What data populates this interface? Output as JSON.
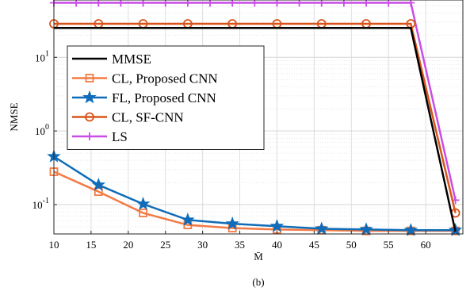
{
  "caption": "(b)",
  "chart_data": {
    "type": "line",
    "xlabel": "M̄",
    "ylabel": "NMSE",
    "xlim": [
      10,
      65
    ],
    "ylim": [
      0.04,
      60
    ],
    "yscale": "log",
    "grid": true,
    "legend_position": "top-left",
    "x_ticks": [
      10,
      15,
      20,
      25,
      30,
      35,
      40,
      45,
      50,
      55,
      60
    ],
    "y_ticks": [
      {
        "value": 0.1,
        "base": "10",
        "exp": "-1"
      },
      {
        "value": 1,
        "base": "10",
        "exp": "0"
      },
      {
        "value": 10,
        "base": "10",
        "exp": "1"
      }
    ],
    "series": [
      {
        "name": "MMSE",
        "color": "#000000",
        "marker": "none",
        "x": [
          10,
          16,
          22,
          28,
          34,
          40,
          46,
          52,
          58,
          64
        ],
        "y": [
          25,
          25,
          25,
          25,
          25,
          25,
          25,
          25,
          25,
          0.043
        ]
      },
      {
        "name": "CL, Proposed CNN",
        "color": "#F47A43",
        "marker": "square",
        "x": [
          10,
          16,
          22,
          28,
          34,
          40,
          46,
          52,
          58,
          64
        ],
        "y": [
          0.28,
          0.15,
          0.077,
          0.053,
          0.048,
          0.046,
          0.045,
          0.044,
          0.044,
          0.044
        ]
      },
      {
        "name": "FL, Proposed CNN",
        "color": "#0F6CB8",
        "marker": "star",
        "x": [
          10,
          16,
          22,
          28,
          34,
          40,
          46,
          52,
          58,
          64
        ],
        "y": [
          0.45,
          0.185,
          0.102,
          0.062,
          0.055,
          0.051,
          0.047,
          0.046,
          0.045,
          0.045
        ]
      },
      {
        "name": "CL, SF-CNN",
        "color": "#D9541A",
        "marker": "circle",
        "x": [
          10,
          16,
          22,
          28,
          34,
          40,
          46,
          52,
          58,
          64
        ],
        "y": [
          28.5,
          28.5,
          28.5,
          28.5,
          28.5,
          28.5,
          28.5,
          28.5,
          28.5,
          0.077
        ]
      },
      {
        "name": "LS",
        "color": "#C94CE6",
        "marker": "plus",
        "x": [
          10,
          13,
          16,
          19,
          22,
          25,
          28,
          31,
          34,
          37,
          40,
          43,
          46,
          49,
          52,
          55,
          58,
          64
        ],
        "y": [
          55,
          55,
          55,
          55,
          55,
          55,
          55,
          55,
          55,
          55,
          55,
          55,
          55,
          55,
          55,
          55,
          55,
          0.115
        ]
      }
    ]
  }
}
